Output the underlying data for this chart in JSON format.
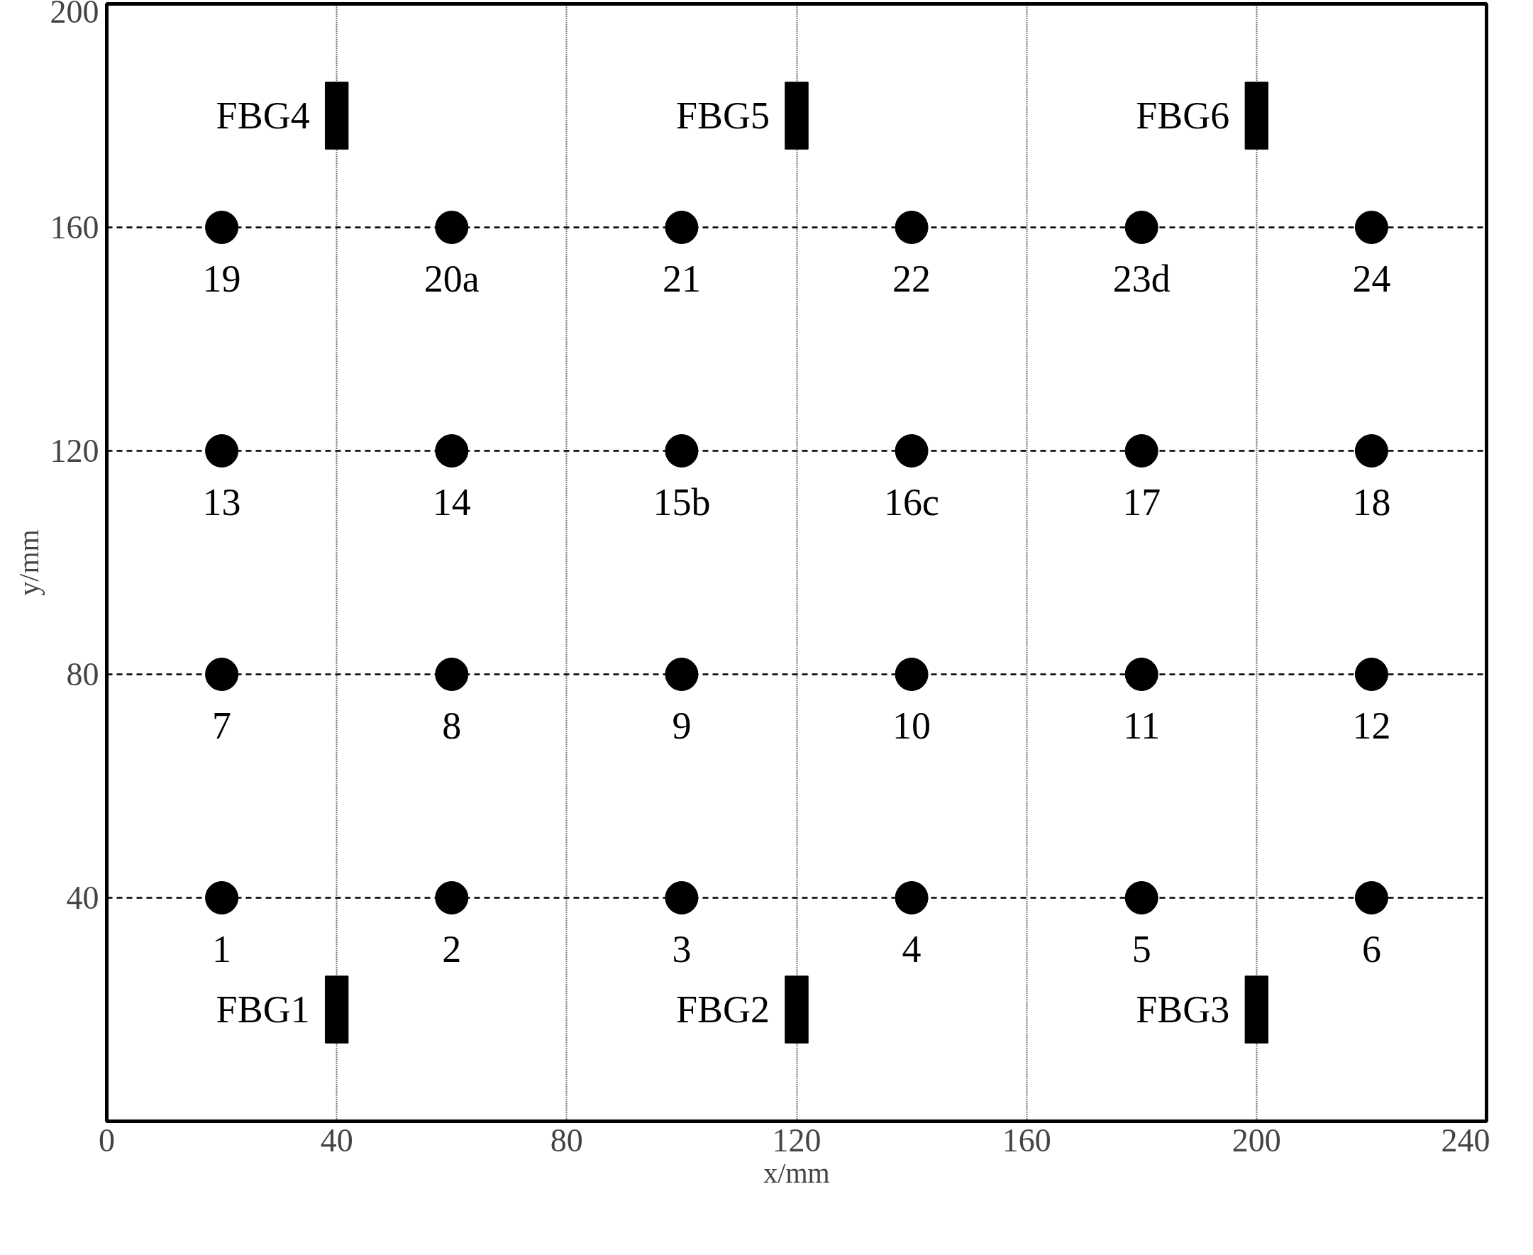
{
  "chart_data": {
    "type": "scatter",
    "xlabel": "x/mm",
    "ylabel": "y/mm",
    "xlim": [
      0,
      240
    ],
    "ylim": [
      0,
      200
    ],
    "xticks": [
      0,
      40,
      80,
      120,
      160,
      200,
      240
    ],
    "yticks": [
      40,
      80,
      120,
      160,
      200
    ],
    "grid": true,
    "series": [
      {
        "color": "#000000",
        "marker": "circle",
        "x": [
          20,
          60,
          100,
          140,
          180,
          220,
          20,
          60,
          100,
          140,
          180,
          220,
          20,
          60,
          100,
          140,
          180,
          220,
          20,
          60,
          100,
          140,
          180,
          220
        ],
        "values": [
          40,
          40,
          40,
          40,
          40,
          40,
          80,
          80,
          80,
          80,
          80,
          80,
          120,
          120,
          120,
          120,
          120,
          120,
          160,
          160,
          160,
          160,
          160,
          160
        ]
      },
      {
        "type": "bar",
        "color": "#000000",
        "x": [
          40,
          120,
          200
        ],
        "base": [
          14,
          14,
          14
        ],
        "values": [
          12,
          12,
          12
        ]
      },
      {
        "type": "bar",
        "color": "#000000",
        "x": [
          40,
          120,
          200
        ],
        "base": [
          174,
          174,
          174
        ],
        "values": [
          12,
          12,
          12
        ]
      }
    ],
    "annotations": [
      {
        "text": "1",
        "x": 20,
        "y": 40
      },
      {
        "text": "2",
        "x": 60,
        "y": 40
      },
      {
        "text": "3",
        "x": 100,
        "y": 40
      },
      {
        "text": "4",
        "x": 140,
        "y": 40
      },
      {
        "text": "5",
        "x": 180,
        "y": 40
      },
      {
        "text": "6",
        "x": 220,
        "y": 40
      },
      {
        "text": "7",
        "x": 20,
        "y": 80
      },
      {
        "text": "8",
        "x": 60,
        "y": 80
      },
      {
        "text": "9",
        "x": 100,
        "y": 80
      },
      {
        "text": "10",
        "x": 140,
        "y": 80
      },
      {
        "text": "11",
        "x": 180,
        "y": 80
      },
      {
        "text": "12",
        "x": 220,
        "y": 80
      },
      {
        "text": "13",
        "x": 20,
        "y": 120
      },
      {
        "text": "14",
        "x": 60,
        "y": 120
      },
      {
        "text": "15b",
        "x": 100,
        "y": 120
      },
      {
        "text": "16c",
        "x": 140,
        "y": 120
      },
      {
        "text": "17",
        "x": 180,
        "y": 120
      },
      {
        "text": "18",
        "x": 220,
        "y": 120
      },
      {
        "text": "19",
        "x": 20,
        "y": 160
      },
      {
        "text": "20a",
        "x": 60,
        "y": 160
      },
      {
        "text": "21",
        "x": 100,
        "y": 160
      },
      {
        "text": "22",
        "x": 140,
        "y": 160
      },
      {
        "text": "23d",
        "x": 180,
        "y": 160
      },
      {
        "text": "24",
        "x": 220,
        "y": 160
      },
      {
        "text": "FBG1",
        "x": 40,
        "y": 26
      },
      {
        "text": "FBG4",
        "x": 40,
        "y": 186
      },
      {
        "text": "FBG2",
        "x": 120,
        "y": 26
      },
      {
        "text": "FBG5",
        "x": 120,
        "y": 186
      },
      {
        "text": "FBG3",
        "x": 200,
        "y": 26
      },
      {
        "text": "FBG6",
        "x": 200,
        "y": 186
      }
    ]
  }
}
